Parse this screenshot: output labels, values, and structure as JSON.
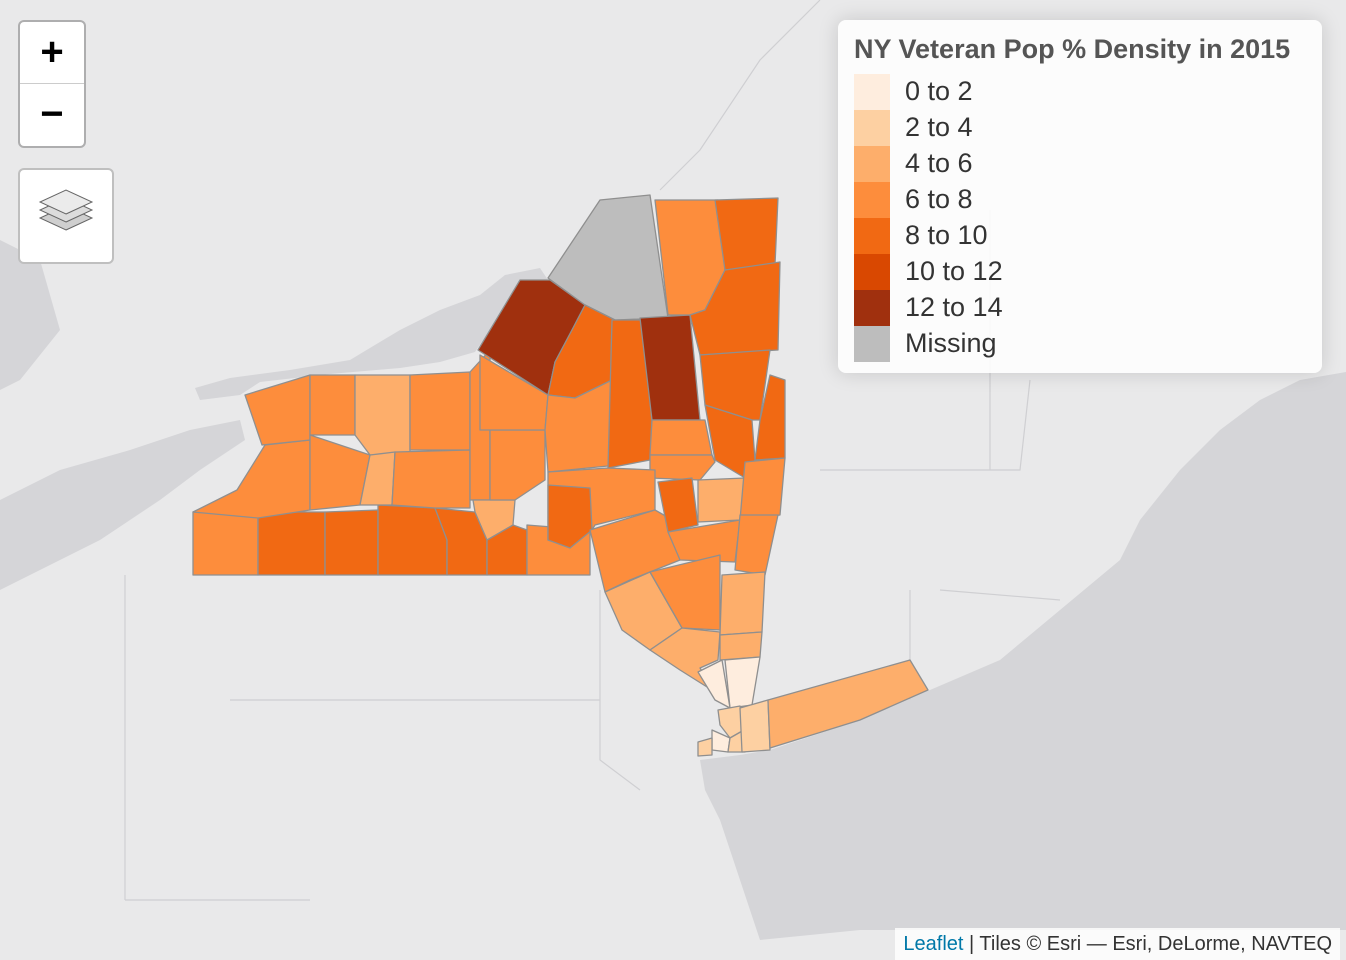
{
  "controls": {
    "zoom_in": "+",
    "zoom_out": "−"
  },
  "legend": {
    "title": "NY Veteran Pop % Density in 2015",
    "items": [
      {
        "label": "0 to 2",
        "color": "#feedde"
      },
      {
        "label": "2 to 4",
        "color": "#fdd0a2"
      },
      {
        "label": "4 to 6",
        "color": "#fdae6b"
      },
      {
        "label": "6 to 8",
        "color": "#fd8d3c"
      },
      {
        "label": "8 to 10",
        "color": "#f16913"
      },
      {
        "label": "10 to 12",
        "color": "#d94801"
      },
      {
        "label": "12 to 14",
        "color": "#a0300e"
      },
      {
        "label": "Missing",
        "color": "#bdbdbd"
      }
    ]
  },
  "attribution": {
    "link": "Leaflet",
    "text": " | Tiles © Esri — Esri, DeLorme, NAVTEQ"
  }
}
